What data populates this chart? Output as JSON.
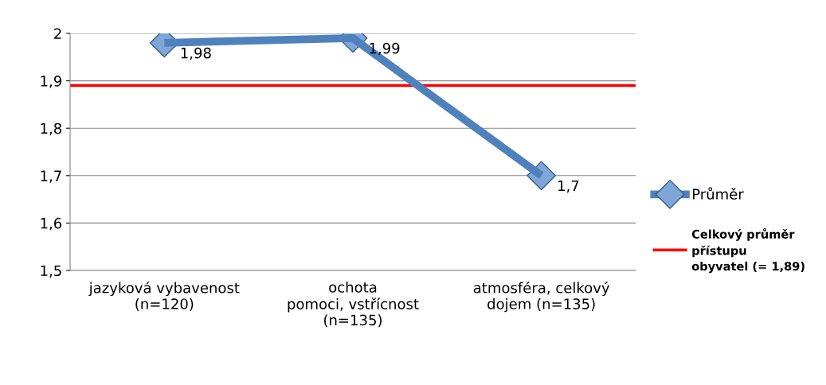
{
  "chart_data": {
    "type": "line",
    "categories": [
      "jazyková vybavenost\n(n=120)",
      "ochota\npomoci, vstřícnost\n(n=135)",
      "atmosféra, celkový\ndojem (n=135)"
    ],
    "series": [
      {
        "name": "Průměr",
        "color": "#4f81bd",
        "values": [
          1.98,
          1.99,
          1.7
        ],
        "value_labels": [
          "1,98",
          "1,99",
          "1,7"
        ]
      }
    ],
    "ylim": [
      1.5,
      2.0
    ],
    "yticks": [
      {
        "value": 1.5,
        "label": "1,5"
      },
      {
        "value": 1.6,
        "label": "1,6"
      },
      {
        "value": 1.7,
        "label": "1,7"
      },
      {
        "value": 1.8,
        "label": "1,8"
      },
      {
        "value": 1.9,
        "label": "1,9"
      },
      {
        "value": 2.0,
        "label": "2"
      }
    ],
    "ref_lines": [
      {
        "axis": "y",
        "value": 1.89,
        "label": "Celkový průměr\npřístupu\nobyvatel (= 1,89)",
        "color": "#ff0000",
        "line_style": "solid"
      }
    ],
    "grid": "y",
    "legend": "right",
    "marker": "diamond",
    "line_style": "solid"
  }
}
